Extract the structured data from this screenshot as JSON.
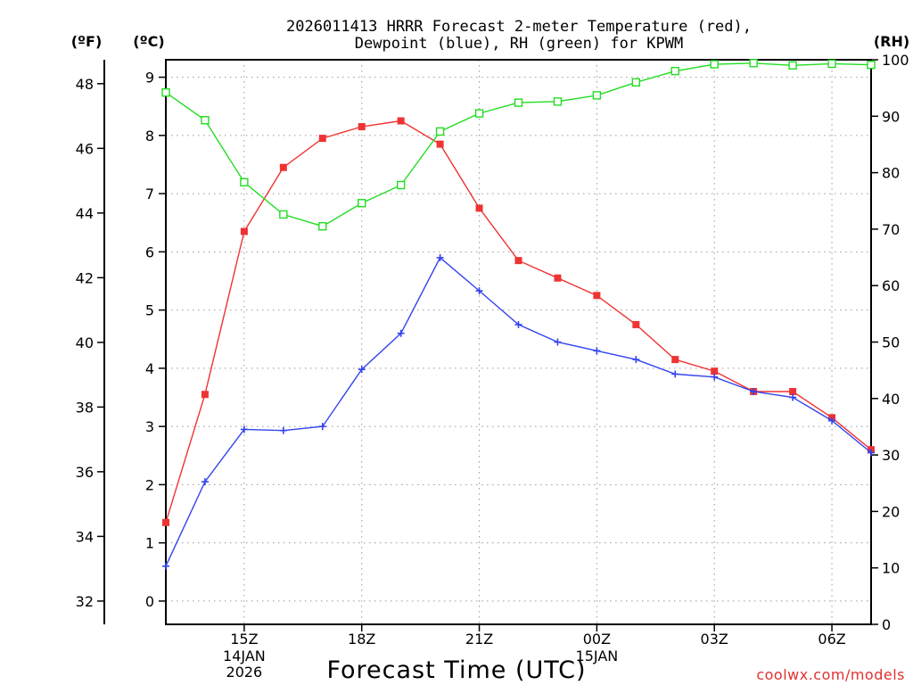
{
  "chart_data": {
    "type": "line",
    "title_line1": "2026011413 HRRR Forecast 2-meter Temperature (red),",
    "title_line2": "Dewpoint (blue), RH (green) for KPWM",
    "xlabel": "Forecast Time (UTC)",
    "credit": "coolwx.com/models",
    "unit_f": "(ºF)",
    "unit_c": "(ºC)",
    "unit_rh": "(RH)",
    "hours": [
      13,
      14,
      15,
      16,
      17,
      18,
      19,
      20,
      21,
      22,
      23,
      24,
      25,
      26,
      27,
      28,
      29,
      30,
      31
    ],
    "x_ticks": [
      {
        "hour": 15,
        "label": "15Z",
        "sub1": "14JAN",
        "sub2": "2026"
      },
      {
        "hour": 18,
        "label": "18Z",
        "sub1": "",
        "sub2": ""
      },
      {
        "hour": 21,
        "label": "21Z",
        "sub1": "",
        "sub2": ""
      },
      {
        "hour": 24,
        "label": "00Z",
        "sub1": "15JAN",
        "sub2": ""
      },
      {
        "hour": 27,
        "label": "03Z",
        "sub1": "",
        "sub2": ""
      },
      {
        "hour": 30,
        "label": "06Z",
        "sub1": "",
        "sub2": ""
      }
    ],
    "ylim_c": [
      -0.4,
      9.3
    ],
    "ylim_rh": [
      0,
      100
    ],
    "c_ticks": [
      0,
      1,
      2,
      3,
      4,
      5,
      6,
      7,
      8,
      9
    ],
    "f_ticks": [
      32,
      34,
      36,
      38,
      40,
      42,
      44,
      46,
      48
    ],
    "rh_ticks": [
      0,
      10,
      20,
      30,
      40,
      50,
      60,
      70,
      80,
      90,
      100
    ],
    "grid": true,
    "colors": {
      "temperature": "#ee3333",
      "dewpoint": "#3344ee",
      "rh": "#22dd22"
    },
    "series": [
      {
        "name": "Temperature",
        "unit": "C",
        "marker": "square-filled",
        "values": [
          1.35,
          3.55,
          6.35,
          7.45,
          7.95,
          8.15,
          8.25,
          7.85,
          6.75,
          5.85,
          5.55,
          5.25,
          4.75,
          4.15,
          3.95,
          3.6,
          3.6,
          3.15,
          2.6
        ]
      },
      {
        "name": "Dewpoint",
        "unit": "C",
        "marker": "plus",
        "values": [
          0.6,
          2.05,
          2.95,
          2.93,
          3.0,
          3.98,
          4.6,
          5.9,
          5.33,
          4.75,
          4.45,
          4.3,
          4.15,
          3.9,
          3.85,
          3.6,
          3.5,
          3.1,
          2.55
        ]
      },
      {
        "name": "RH",
        "unit": "%",
        "marker": "square-open",
        "values": [
          94.2,
          89.3,
          78.3,
          72.6,
          70.5,
          74.6,
          77.8,
          87.3,
          90.5,
          92.4,
          92.6,
          93.7,
          96.0,
          98.0,
          99.2,
          99.4,
          99.0,
          99.3,
          99.1
        ]
      }
    ]
  }
}
